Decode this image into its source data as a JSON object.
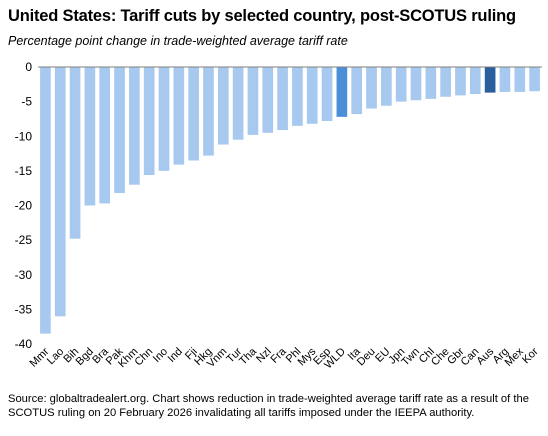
{
  "title": "United States: Tariff cuts by selected country, post-SCOTUS ruling",
  "subtitle": "Percentage point change in trade-weighted average tariff rate",
  "footnote": "Source: globaltradealert.org. Chart shows reduction in trade-weighted average tariff rate as a result of the SCOTUS ruling on 20 February 2026 invalidating all tariffs imposed under the IEEPA authority.",
  "colors": {
    "bar": "#a8c9ef",
    "highlight_wld": "#4a8fd8",
    "highlight_aus": "#2a5f9e",
    "axis": "#7f7f7f",
    "grid": "#d9d9d9"
  },
  "chart_data": {
    "type": "bar",
    "categories": [
      "Mmr",
      "Lao",
      "Bih",
      "Bgd",
      "Bra",
      "Pak",
      "Khm",
      "Chn",
      "Ino",
      "Ind",
      "Fji",
      "Hkg",
      "Vnm",
      "Tur",
      "Tha",
      "Nzl",
      "Fra",
      "Phl",
      "Mys",
      "Esp",
      "WLD",
      "Ita",
      "Deu",
      "EU",
      "Jpn",
      "Twn",
      "Chl",
      "Che",
      "Gbr",
      "Can",
      "Aus",
      "Arg",
      "Mex",
      "Kor"
    ],
    "values": [
      -38.5,
      -36.0,
      -24.8,
      -20.0,
      -19.7,
      -18.2,
      -17.0,
      -15.6,
      -15.0,
      -14.1,
      -13.5,
      -12.8,
      -11.2,
      -10.5,
      -9.8,
      -9.5,
      -9.1,
      -8.5,
      -8.2,
      -7.8,
      -7.2,
      -6.8,
      -6.0,
      -5.6,
      -5.0,
      -4.8,
      -4.6,
      -4.3,
      -4.1,
      -3.9,
      -3.7,
      -3.6,
      -3.6,
      -3.5
    ],
    "highlight": {
      "WLD": "highlight_wld",
      "Aus": "highlight_aus"
    },
    "yticks": [
      "0",
      "-5",
      "-10",
      "-15",
      "-20",
      "-25",
      "-30",
      "-35",
      "-40"
    ],
    "ylim": [
      -40,
      0
    ],
    "grid": false,
    "legend": "none"
  }
}
